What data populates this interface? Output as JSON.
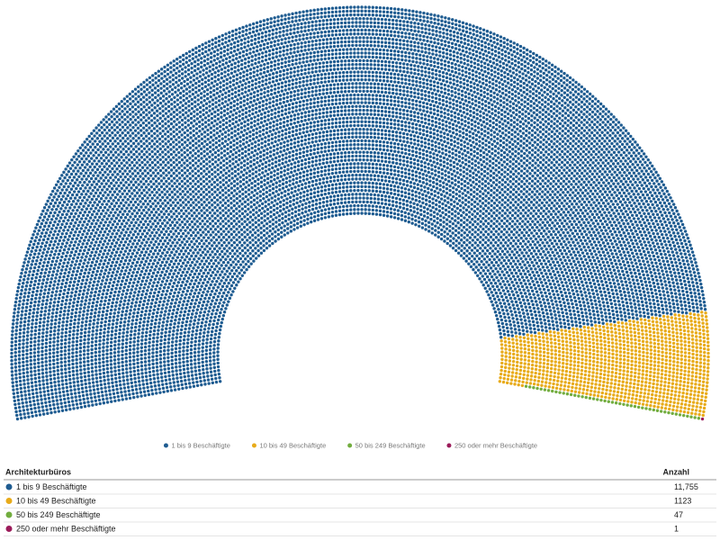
{
  "chart_data": {
    "type": "parliament",
    "categories": [
      "1 bis 9 Beschäftigte",
      "10 bis 49 Beschäftigte",
      "50 bis 249 Beschäftigte",
      "250 oder mehr Beschäftigte"
    ],
    "values": [
      11755,
      1123,
      47,
      1
    ],
    "value_labels": [
      "11,755",
      "1123",
      "47",
      "1"
    ],
    "colors": [
      "#1f5c91",
      "#e8ab1a",
      "#72ad3f",
      "#9b1b5a"
    ]
  },
  "table": {
    "header": [
      "Architekturbüros",
      "Anzahl"
    ]
  }
}
